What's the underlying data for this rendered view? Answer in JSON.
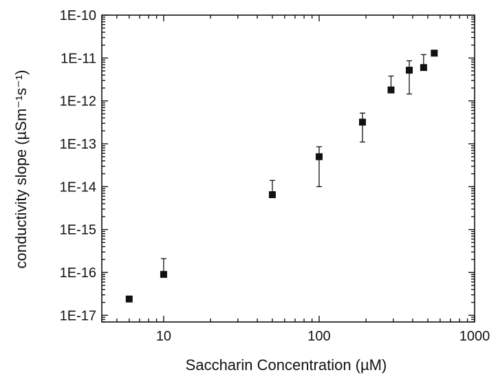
{
  "chart_data": {
    "type": "scatter",
    "title": "",
    "xlabel": "Saccharin Concentration (µM)",
    "ylabel": "conductivity slope (µSm⁻¹s⁻¹)",
    "x_scale": "log",
    "y_scale": "log",
    "xlim": [
      4,
      1000
    ],
    "ylim": [
      7e-18,
      1e-10
    ],
    "x_ticks": [
      {
        "value": 10,
        "label": "10"
      },
      {
        "value": 100,
        "label": "100"
      },
      {
        "value": 1000,
        "label": "1000"
      }
    ],
    "y_ticks": [
      {
        "value": 1e-17,
        "label": "1E-17"
      },
      {
        "value": 1e-16,
        "label": "1E-16"
      },
      {
        "value": 1e-15,
        "label": "1E-15"
      },
      {
        "value": 1e-14,
        "label": "1E-14"
      },
      {
        "value": 1e-13,
        "label": "1E-13"
      },
      {
        "value": 1e-12,
        "label": "1E-12"
      },
      {
        "value": 1e-11,
        "label": "1E-11"
      },
      {
        "value": 1e-10,
        "label": "1E-10"
      }
    ],
    "grid": false,
    "marker": "square",
    "color": "#111111",
    "series": [
      {
        "points": [
          {
            "x": 6,
            "y": 2.4e-17
          },
          {
            "x": 10,
            "y": 9e-17,
            "err_hi": 2.1e-16
          },
          {
            "x": 50,
            "y": 6.5e-15,
            "err_hi": 1.4e-14
          },
          {
            "x": 100,
            "y": 5e-14,
            "err_hi": 8.5e-14,
            "err_lo": 1e-14
          },
          {
            "x": 190,
            "y": 3.2e-13,
            "err_hi": 5.2e-13,
            "err_lo": 1.1e-13
          },
          {
            "x": 290,
            "y": 1.8e-12,
            "err_hi": 3.8e-12
          },
          {
            "x": 380,
            "y": 5.2e-12,
            "err_hi": 8.6e-12,
            "err_lo": 1.45e-12
          },
          {
            "x": 470,
            "y": 6e-12,
            "err_hi": 1.2e-11
          },
          {
            "x": 550,
            "y": 1.3e-11
          }
        ]
      }
    ]
  }
}
